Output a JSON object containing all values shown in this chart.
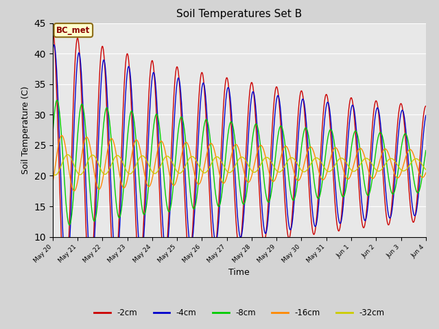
{
  "title": "Soil Temperatures Set B",
  "xlabel": "Time",
  "ylabel": "Soil Temperature (C)",
  "ylim": [
    10,
    45
  ],
  "yticks": [
    10,
    15,
    20,
    25,
    30,
    35,
    40,
    45
  ],
  "annotation": "BC_met",
  "legend_labels": [
    "-2cm",
    "-4cm",
    "-8cm",
    "-16cm",
    "-32cm"
  ],
  "colors": [
    "#cc0000",
    "#0000cc",
    "#00cc00",
    "#ff8800",
    "#cccc00"
  ],
  "fig_bg_color": "#d4d4d4",
  "plot_bg_color": "#e8e8e8",
  "num_days": 15,
  "start_day": 20
}
